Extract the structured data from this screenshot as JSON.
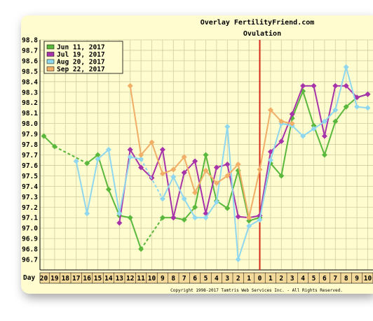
{
  "chart_data": {
    "type": "line",
    "title": "Overlay FertilityFriend.com",
    "subtitle": "Ovulation",
    "xlabel": "Day",
    "ylabel": "",
    "ylim": [
      96.6,
      98.8
    ],
    "yticks": [
      "98.8",
      "98.7",
      "98.6",
      "98.5",
      "98.4",
      "98.3",
      "98.2",
      "98.1",
      "98.0",
      "97.9",
      "97.8",
      "97.7",
      "97.6",
      "97.5",
      "97.4",
      "97.3",
      "97.2",
      "97.1",
      "97.0",
      "96.9",
      "96.8",
      "96.7"
    ],
    "x": [
      -20,
      -19,
      -18,
      -17,
      -16,
      -15,
      -14,
      -13,
      -12,
      -11,
      -10,
      -9,
      -8,
      -7,
      -6,
      -5,
      -4,
      -3,
      -2,
      -1,
      0,
      1,
      2,
      3,
      4,
      5,
      6,
      7,
      8,
      9,
      10
    ],
    "xtick_labels": [
      "20",
      "19",
      "18",
      "17",
      "16",
      "15",
      "14",
      "13",
      "12",
      "11",
      "10",
      "9",
      "8",
      "7",
      "6",
      "5",
      "4",
      "3",
      "2",
      "1",
      "0",
      "1",
      "2",
      "3",
      "4",
      "5",
      "6",
      "7",
      "8",
      "9",
      "10"
    ],
    "ovulation_day": 0,
    "grid": true,
    "legend_position": "top-left",
    "series": [
      {
        "name": "Jun 11, 2017",
        "color": "#5ab83c",
        "values": [
          97.88,
          97.78,
          null,
          null,
          97.62,
          97.7,
          97.37,
          97.12,
          97.1,
          96.8,
          null,
          97.1,
          97.1,
          97.08,
          97.2,
          97.7,
          97.26,
          97.19,
          97.55,
          97.07,
          97.1,
          97.62,
          97.5,
          98.05,
          98.31,
          97.98,
          97.7,
          98.02,
          98.16,
          98.25,
          98.28
        ]
      },
      {
        "name": "Jul 19, 2017",
        "color": "#a733aa",
        "values": [
          null,
          null,
          null,
          null,
          null,
          null,
          null,
          97.05,
          97.75,
          97.58,
          97.48,
          97.75,
          97.1,
          97.53,
          97.64,
          97.14,
          97.58,
          97.61,
          97.11,
          97.1,
          97.12,
          97.73,
          97.83,
          98.09,
          98.36,
          98.36,
          97.88,
          98.36,
          98.36,
          98.25,
          98.28
        ]
      },
      {
        "name": "Aug 20, 2017",
        "color": "#8fd7ee",
        "values": [
          null,
          null,
          null,
          97.64,
          97.14,
          97.66,
          97.75,
          97.14,
          97.68,
          97.66,
          null,
          97.28,
          97.49,
          97.28,
          97.1,
          97.1,
          97.25,
          97.97,
          96.7,
          97.02,
          97.08,
          97.65,
          98.0,
          97.98,
          97.88,
          97.95,
          98.02,
          98.13,
          98.54,
          98.16,
          98.15
        ]
      },
      {
        "name": "Sep 22, 2017",
        "color": "#f0ae66",
        "values": [
          null,
          null,
          null,
          null,
          null,
          null,
          null,
          null,
          98.36,
          97.7,
          97.82,
          97.52,
          97.56,
          97.68,
          97.34,
          97.55,
          97.43,
          97.5,
          97.61,
          97.1,
          97.56,
          98.13,
          98.02,
          98.0,
          null,
          null,
          null,
          null,
          null,
          null,
          null
        ]
      }
    ],
    "footer": "Copyright 1998-2017 Tamtris Web Services Inc. - All Rights Reserved."
  }
}
